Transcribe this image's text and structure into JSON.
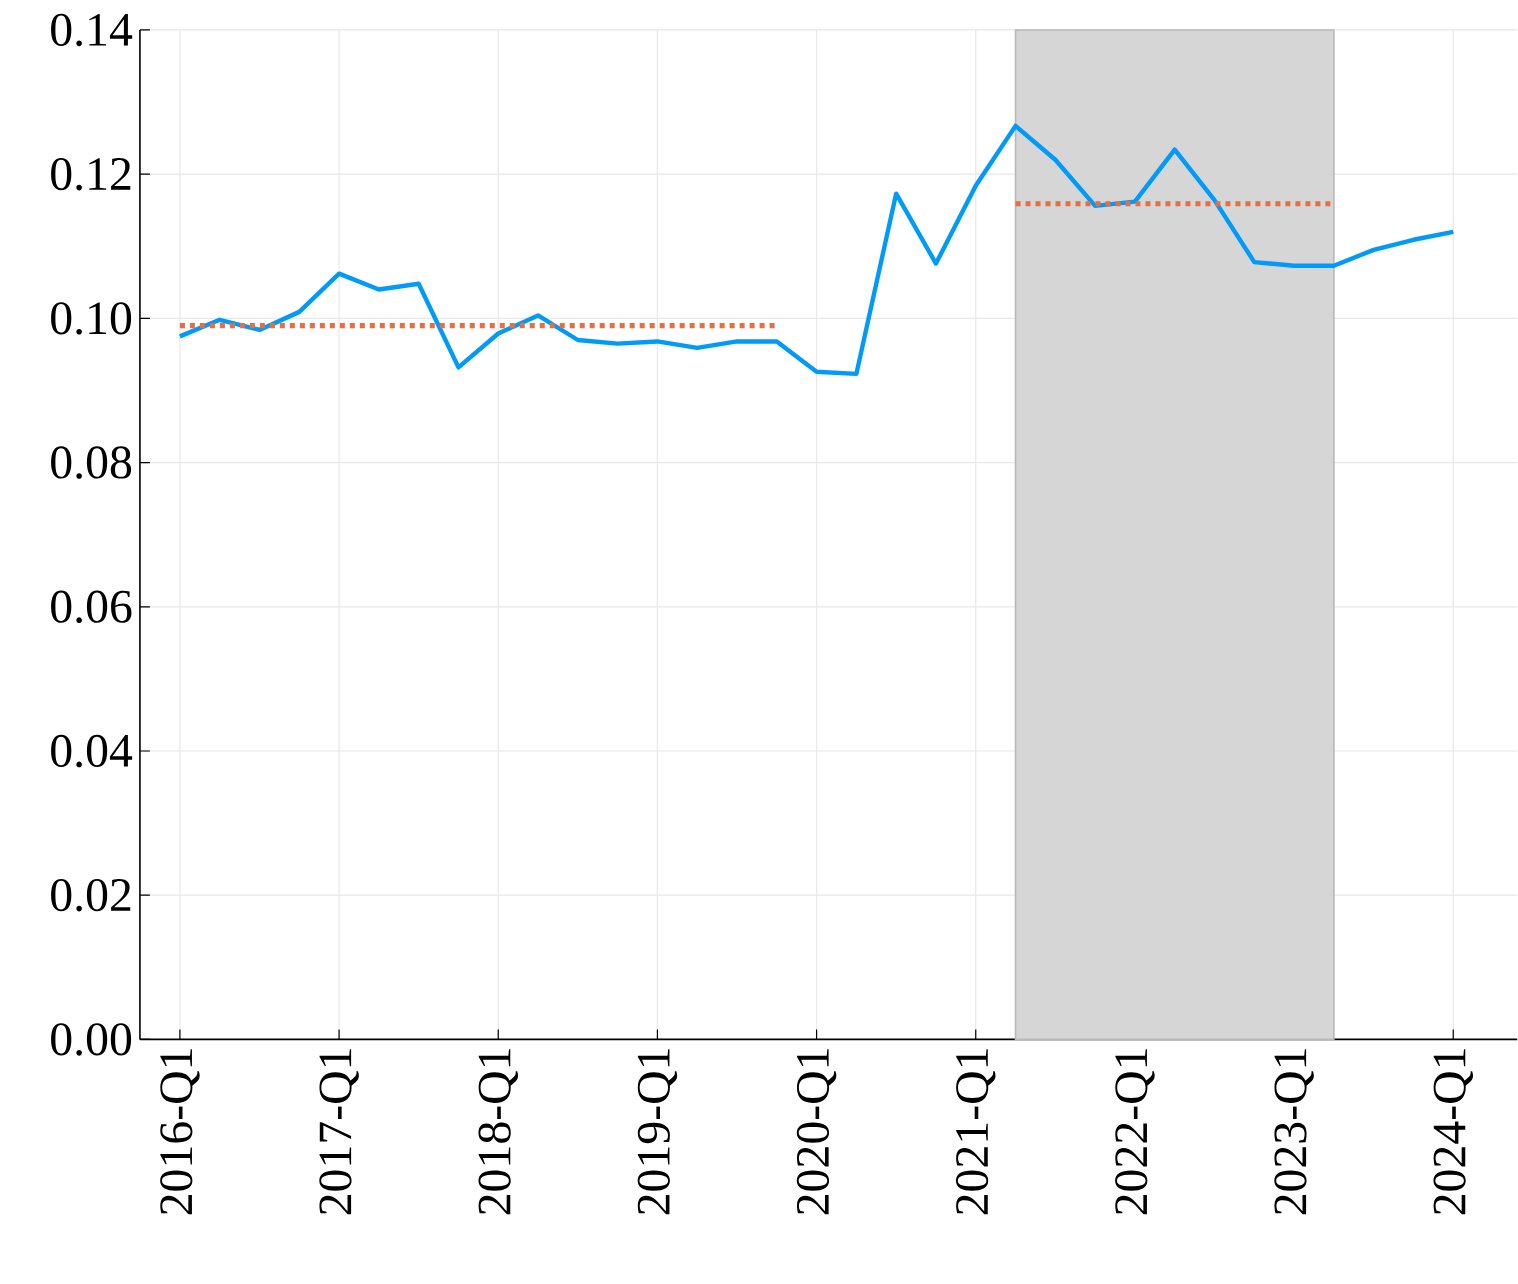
{
  "chart_data": {
    "type": "line",
    "categories": [
      "2016-Q1",
      null,
      null,
      null,
      "2017-Q1",
      null,
      null,
      null,
      "2018-Q1",
      null,
      null,
      null,
      "2019-Q1",
      null,
      null,
      null,
      "2020-Q1",
      null,
      null,
      null,
      "2021-Q1",
      null,
      null,
      null,
      "2022-Q1",
      null,
      null,
      null,
      "2023-Q1",
      null,
      null,
      null,
      "2024-Q1"
    ],
    "series": [
      {
        "color": "#009af9",
        "values": [
          0.0975,
          0.0998,
          0.0984,
          0.1009,
          0.1062,
          0.104,
          0.1048,
          0.0932,
          0.0979,
          0.1004,
          0.097,
          0.0965,
          0.0968,
          0.0959,
          0.0968,
          0.0968,
          0.0926,
          0.0923,
          0.1173,
          0.1076,
          0.1184,
          0.1267,
          0.122,
          0.1156,
          0.1162,
          0.1234,
          0.1164,
          0.1078,
          0.1073,
          0.1073,
          0.1095,
          0.1109,
          0.112
        ]
      },
      {
        "color": "#e26f46",
        "line_style": "dotted",
        "values": [
          0.099,
          0.099,
          0.099,
          0.099,
          0.099,
          0.099,
          0.099,
          0.099,
          0.099,
          0.099,
          0.099,
          0.099,
          0.099,
          0.099,
          0.099,
          0.099,
          null,
          null,
          null,
          null,
          null,
          null,
          null,
          null,
          null,
          null,
          null,
          null,
          null,
          null,
          null,
          null,
          null
        ]
      },
      {
        "color": "#e26f46",
        "line_style": "dotted",
        "values": [
          null,
          null,
          null,
          null,
          null,
          null,
          null,
          null,
          null,
          null,
          null,
          null,
          null,
          null,
          null,
          null,
          null,
          null,
          null,
          null,
          null,
          0.1159,
          0.1159,
          0.1159,
          0.1159,
          0.1159,
          0.1159,
          0.1159,
          0.1159,
          0.1159,
          null,
          null,
          null
        ]
      }
    ],
    "ylim": [
      0,
      0.14
    ],
    "yticks": [
      {
        "value": 0,
        "label": "0.00"
      },
      {
        "value": 0.02,
        "label": "0.02"
      },
      {
        "value": 0.04,
        "label": "0.04"
      },
      {
        "value": 0.06,
        "label": "0.06"
      },
      {
        "value": 0.08,
        "label": "0.08"
      },
      {
        "value": 0.1,
        "label": "0.10"
      },
      {
        "value": 0.12,
        "label": "0.12"
      },
      {
        "value": 0.14,
        "label": "0.14"
      }
    ],
    "grid": true,
    "marker": "none"
  }
}
